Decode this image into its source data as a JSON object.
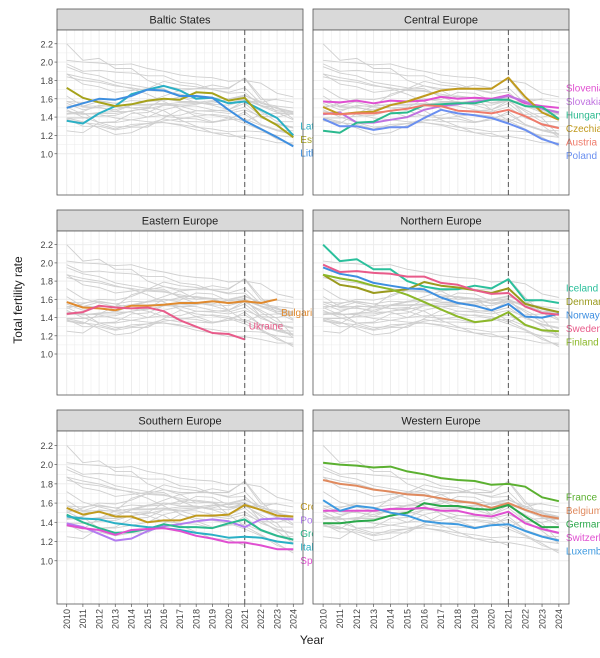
{
  "figure": {
    "ylabel": "Total fertility rate",
    "xlabel": "Year",
    "years": [
      2010,
      2011,
      2012,
      2013,
      2014,
      2015,
      2016,
      2017,
      2018,
      2019,
      2020,
      2021,
      2022,
      2023,
      2024
    ],
    "yticks": [
      "1.0",
      "1.2",
      "1.4",
      "1.6",
      "1.8",
      "2.0",
      "2.2"
    ],
    "colors": {
      "background_line": "#cfcfcf",
      "panel_border": "#555555",
      "strip_fill": "#d9d9d9",
      "grid": "#ebebeb",
      "dashed_line": "#555555"
    }
  },
  "chart_data": [
    {
      "type": "line",
      "title": "Baltic States",
      "x": [
        2010,
        2011,
        2012,
        2013,
        2014,
        2015,
        2016,
        2017,
        2018,
        2019,
        2020,
        2021,
        2022,
        2023,
        2024
      ],
      "ylim": [
        0.55,
        2.35
      ],
      "vline_x": 2021,
      "series": [
        {
          "name": "Latvia",
          "color": "#2ab0c5",
          "values": [
            1.36,
            1.33,
            1.44,
            1.52,
            1.65,
            1.7,
            1.74,
            1.69,
            1.6,
            1.61,
            1.55,
            1.57,
            1.48,
            1.39,
            1.2
          ]
        },
        {
          "name": "Estonia",
          "color": "#a6a21b",
          "values": [
            1.72,
            1.61,
            1.56,
            1.52,
            1.54,
            1.58,
            1.6,
            1.59,
            1.67,
            1.66,
            1.58,
            1.61,
            1.41,
            1.31,
            1.18
          ]
        },
        {
          "name": "Lithuania",
          "color": "#3e8fe0",
          "values": [
            1.5,
            1.55,
            1.6,
            1.59,
            1.63,
            1.7,
            1.69,
            1.63,
            1.63,
            1.61,
            1.48,
            1.36,
            1.27,
            1.18,
            1.08
          ]
        }
      ]
    },
    {
      "type": "line",
      "title": "Central Europe",
      "x": [
        2010,
        2011,
        2012,
        2013,
        2014,
        2015,
        2016,
        2017,
        2018,
        2019,
        2020,
        2021,
        2022,
        2023,
        2024
      ],
      "ylim": [
        0.55,
        2.35
      ],
      "vline_x": 2021,
      "series": [
        {
          "name": "Slovenia",
          "color": "#e04fd1",
          "values": [
            1.57,
            1.56,
            1.58,
            1.55,
            1.58,
            1.57,
            1.58,
            1.62,
            1.6,
            1.61,
            1.6,
            1.64,
            1.55,
            1.52,
            1.5
          ]
        },
        {
          "name": "Slovakia",
          "color": "#c074e0",
          "values": [
            1.43,
            1.45,
            1.34,
            1.34,
            1.37,
            1.4,
            1.48,
            1.52,
            1.54,
            1.57,
            1.59,
            1.63,
            1.57,
            1.49,
            1.45
          ]
        },
        {
          "name": "Czechia",
          "color": "#c09a1d",
          "values": [
            1.51,
            1.43,
            1.45,
            1.46,
            1.53,
            1.57,
            1.63,
            1.69,
            1.71,
            1.71,
            1.71,
            1.83,
            1.62,
            1.45,
            1.37
          ]
        },
        {
          "name": "Hungary",
          "color": "#2bb98e",
          "values": [
            1.25,
            1.23,
            1.34,
            1.35,
            1.44,
            1.45,
            1.53,
            1.54,
            1.55,
            1.55,
            1.59,
            1.59,
            1.52,
            1.51,
            1.38
          ]
        },
        {
          "name": "Austria",
          "color": "#ef7b6b",
          "values": [
            1.44,
            1.43,
            1.44,
            1.44,
            1.47,
            1.49,
            1.53,
            1.52,
            1.47,
            1.46,
            1.44,
            1.48,
            1.41,
            1.32,
            1.28
          ]
        },
        {
          "name": "Poland",
          "color": "#6a8ff0",
          "values": [
            1.38,
            1.3,
            1.3,
            1.26,
            1.29,
            1.29,
            1.39,
            1.48,
            1.44,
            1.42,
            1.39,
            1.33,
            1.26,
            1.16,
            1.1
          ]
        }
      ]
    },
    {
      "type": "line",
      "title": "Eastern Europe",
      "x": [
        2010,
        2011,
        2012,
        2013,
        2014,
        2015,
        2016,
        2017,
        2018,
        2019,
        2020,
        2021,
        2022,
        2023,
        2024
      ],
      "ylim": [
        0.55,
        2.35
      ],
      "vline_x": 2021,
      "series": [
        {
          "name": "Bulgaria",
          "color": "#e08a2e",
          "values": [
            1.57,
            1.51,
            1.5,
            1.48,
            1.53,
            1.53,
            1.54,
            1.56,
            1.56,
            1.58,
            1.56,
            1.58,
            1.56,
            1.6,
            null
          ]
        },
        {
          "name": "Ukraine",
          "color": "#e85b8a",
          "values": [
            1.44,
            1.46,
            1.53,
            1.51,
            1.5,
            1.51,
            1.47,
            1.37,
            1.3,
            1.23,
            1.22,
            1.16,
            null,
            null,
            null
          ]
        }
      ]
    },
    {
      "type": "line",
      "title": "Northern Europe",
      "x": [
        2010,
        2011,
        2012,
        2013,
        2014,
        2015,
        2016,
        2017,
        2018,
        2019,
        2020,
        2021,
        2022,
        2023,
        2024
      ],
      "ylim": [
        0.55,
        2.35
      ],
      "vline_x": 2021,
      "series": [
        {
          "name": "Iceland",
          "color": "#2bc09c",
          "values": [
            2.2,
            2.02,
            2.04,
            1.93,
            1.93,
            1.8,
            1.74,
            1.71,
            1.71,
            1.75,
            1.72,
            1.82,
            1.59,
            1.59,
            1.56
          ]
        },
        {
          "name": "Denmark",
          "color": "#9a9a1d",
          "values": [
            1.87,
            1.76,
            1.73,
            1.67,
            1.69,
            1.71,
            1.79,
            1.75,
            1.73,
            1.7,
            1.67,
            1.72,
            1.55,
            1.5,
            1.46
          ]
        },
        {
          "name": "Norway",
          "color": "#3e8fe0",
          "values": [
            1.95,
            1.88,
            1.85,
            1.78,
            1.75,
            1.72,
            1.71,
            1.62,
            1.56,
            1.53,
            1.48,
            1.55,
            1.41,
            1.4,
            1.44
          ]
        },
        {
          "name": "Sweden",
          "color": "#e85b8a",
          "values": [
            1.98,
            1.9,
            1.91,
            1.89,
            1.88,
            1.85,
            1.85,
            1.78,
            1.76,
            1.7,
            1.66,
            1.67,
            1.52,
            1.45,
            1.43
          ]
        },
        {
          "name": "Finland",
          "color": "#8cb82a",
          "values": [
            1.87,
            1.83,
            1.8,
            1.75,
            1.71,
            1.65,
            1.57,
            1.49,
            1.41,
            1.35,
            1.37,
            1.46,
            1.32,
            1.26,
            1.25
          ]
        }
      ]
    },
    {
      "type": "line",
      "title": "Southern Europe",
      "x": [
        2010,
        2011,
        2012,
        2013,
        2014,
        2015,
        2016,
        2017,
        2018,
        2019,
        2020,
        2021,
        2022,
        2023,
        2024
      ],
      "ylim": [
        0.55,
        2.35
      ],
      "vline_x": 2021,
      "series": [
        {
          "name": "Croatia",
          "color": "#c09a1d",
          "values": [
            1.55,
            1.48,
            1.51,
            1.46,
            1.46,
            1.4,
            1.42,
            1.42,
            1.47,
            1.47,
            1.48,
            1.58,
            1.53,
            1.47,
            1.46
          ]
        },
        {
          "name": "Portugal",
          "color": "#b37cf0",
          "values": [
            1.39,
            1.35,
            1.28,
            1.21,
            1.23,
            1.31,
            1.36,
            1.38,
            1.41,
            1.43,
            1.41,
            1.35,
            1.43,
            1.44,
            1.43
          ]
        },
        {
          "name": "Greece",
          "color": "#2bb98e",
          "values": [
            1.48,
            1.4,
            1.34,
            1.29,
            1.3,
            1.33,
            1.38,
            1.35,
            1.35,
            1.34,
            1.39,
            1.43,
            1.32,
            1.26,
            1.22
          ]
        },
        {
          "name": "Italy",
          "color": "#2ab0c5",
          "values": [
            1.46,
            1.44,
            1.43,
            1.39,
            1.37,
            1.35,
            1.34,
            1.32,
            1.29,
            1.27,
            1.24,
            1.25,
            1.24,
            1.2,
            1.18
          ]
        },
        {
          "name": "Spain",
          "color": "#e04fd1",
          "values": [
            1.37,
            1.34,
            1.32,
            1.27,
            1.32,
            1.33,
            1.34,
            1.31,
            1.26,
            1.23,
            1.19,
            1.19,
            1.16,
            1.12,
            1.12
          ]
        }
      ]
    },
    {
      "type": "line",
      "title": "Western Europe",
      "x": [
        2010,
        2011,
        2012,
        2013,
        2014,
        2015,
        2016,
        2017,
        2018,
        2019,
        2020,
        2021,
        2022,
        2023,
        2024
      ],
      "ylim": [
        0.55,
        2.35
      ],
      "vline_x": 2021,
      "series": [
        {
          "name": "France",
          "color": "#5bb030",
          "values": [
            2.02,
            2.0,
            1.99,
            1.97,
            1.98,
            1.93,
            1.9,
            1.86,
            1.84,
            1.83,
            1.79,
            1.8,
            1.77,
            1.66,
            1.62
          ]
        },
        {
          "name": "Belgium",
          "color": "#e08a5e",
          "values": [
            1.84,
            1.8,
            1.78,
            1.74,
            1.72,
            1.69,
            1.68,
            1.65,
            1.62,
            1.6,
            1.55,
            1.6,
            1.53,
            1.47,
            1.44
          ]
        },
        {
          "name": "Germany",
          "color": "#2aa84a",
          "values": [
            1.39,
            1.39,
            1.41,
            1.42,
            1.47,
            1.5,
            1.6,
            1.57,
            1.57,
            1.54,
            1.53,
            1.58,
            1.46,
            1.35,
            1.35
          ]
        },
        {
          "name": "Switzerland",
          "color": "#e04fd1",
          "values": [
            1.52,
            1.52,
            1.52,
            1.52,
            1.54,
            1.54,
            1.55,
            1.52,
            1.52,
            1.48,
            1.46,
            1.51,
            1.39,
            1.33,
            1.29
          ]
        },
        {
          "name": "Luxembourg",
          "color": "#3e9ae0",
          "values": [
            1.63,
            1.52,
            1.57,
            1.55,
            1.5,
            1.47,
            1.41,
            1.39,
            1.38,
            1.34,
            1.37,
            1.38,
            1.31,
            1.25,
            1.21
          ]
        }
      ]
    }
  ]
}
